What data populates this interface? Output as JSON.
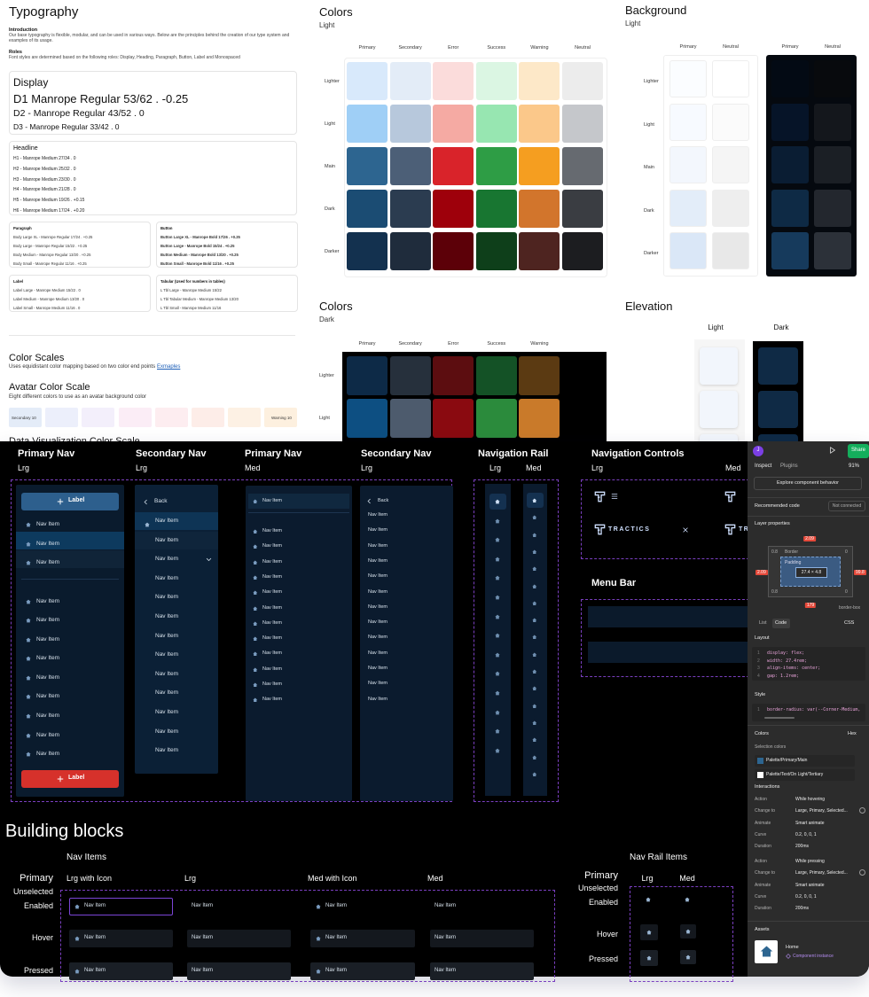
{
  "typography": {
    "title": "Typography",
    "intro_heading": "Introduction",
    "intro": "Our base typography is flexible, modular, and can be used in various ways. Below are the principles behind the creation of our type system and examples of its usage.",
    "roles_heading": "Roles",
    "roles": "Font styles are determined based on the following roles: Display, Heading, Paragraph, Button, Label and Monospaced",
    "display": {
      "title": "Display",
      "items": [
        "D1 Manrope Regular 53/62 . -0.25",
        "D2 - Manrope Regular 43/52 . 0",
        "D3 - Manrope Regular 33/42 . 0"
      ]
    },
    "headline": {
      "title": "Headline",
      "items": [
        "H1 - Manrope Medium 27/34 . 0",
        "H2 - Manrope Medium 25/32 . 0",
        "H3 - Manrope Medium 23/30 . 0",
        "H4 - Manrope Medium 21/28 . 0",
        "H5 - Manrope Medium 19/26 . +0.15",
        "H6 - Manrope Medium 17/24 . +0.20"
      ]
    },
    "paragraph": {
      "title": "Paragraph",
      "items": [
        "Body Large XL - Manrope Regular 17/24 . +0.25",
        "Body Large - Manrope Regular 15/22 . +0.25",
        "Body Medium - Manrope Regular 13/20 . +0.25",
        "Body Small - Manrope Regular 11/16 . +0.25"
      ]
    },
    "button": {
      "title": "Button",
      "items": [
        "Button Large XL - Manrope Bold 17/26 . +0.25",
        "Button Large - Manrope Bold 15/24 . +0.25",
        "Button Medium - Manrope Bold 13/20 . +0.25",
        "Button Small - Manrope Bold 11/16 . +0.25"
      ]
    },
    "label": {
      "title": "Label",
      "items": [
        "Label Large - Manrope Medium 15/22 . 0",
        "Label Medium - Manrope Medium 13/20 . 0",
        "Label Small - Manrope Medium 11/16 . 0"
      ]
    },
    "tabular": {
      "title": "Tabular (Used for numbers in tables)",
      "items": [
        "L Tbl Large - Manrope Medium 15/22",
        "L Tbl Tabular Medium - Manrope Medium 13/20",
        "L Tbl Small - Manrope Medium 11/16"
      ]
    }
  },
  "color_scales": {
    "title": "Color Scales",
    "description": "Uses equidistant color mapping based on two color end points",
    "link": "Exmaples"
  },
  "avatar_color_scale": {
    "title": "Avatar Color Scale",
    "description": "Eight different colors to use as an avatar background color",
    "swatch_labels": [
      "Secondary 10",
      "Warning 10"
    ]
  },
  "data_visualization_title": "Data Visualization Color Scale",
  "colors_light": {
    "title": "Colors",
    "subtitle": "Light",
    "columns": [
      "Primary",
      "Secondary",
      "Error",
      "Success",
      "Warning",
      "Neutral"
    ],
    "rows": [
      "Lighter",
      "Light",
      "Main",
      "Dark",
      "Darker"
    ]
  },
  "background": {
    "title": "Background",
    "subtitle": "Light",
    "columns": [
      "Primary",
      "Neutral",
      "Primary",
      "Neutral"
    ],
    "rows": [
      "Lighter",
      "Light",
      "Main",
      "Dark",
      "Darker"
    ]
  },
  "colors_dark": {
    "title": "Colors",
    "subtitle": "Dark",
    "columns": [
      "Primary",
      "Secondary",
      "Error",
      "Success",
      "Warning"
    ],
    "rows": [
      "Lighter",
      "Light"
    ]
  },
  "elevation": {
    "title": "Elevation",
    "columns": [
      "Light",
      "Dark"
    ]
  },
  "nav_sections": [
    {
      "title": "Primary Nav",
      "sizes": [
        "Lrg"
      ]
    },
    {
      "title": "Secondary Nav",
      "sizes": [
        "Lrg"
      ]
    },
    {
      "title": "Primary Nav",
      "sizes": [
        "Med"
      ]
    },
    {
      "title": "Secondary Nav",
      "sizes": [
        "Lrg"
      ]
    },
    {
      "title": "Navigation Rail",
      "sizes": [
        "Lrg",
        "Med"
      ]
    },
    {
      "title": "Navigation Controls",
      "sizes": [
        "Lrg",
        "Med"
      ]
    }
  ],
  "primary_nav_lrg": {
    "top_button": "Label",
    "items": [
      "Nav Item",
      "Nav Item",
      "Nav Item",
      "Nav Item",
      "Nav Item",
      "Nav Item",
      "Nav Item",
      "Nav Item",
      "Nav Item",
      "Nav Item",
      "Nav Item",
      "Nav Item"
    ],
    "bottom_button": "Label"
  },
  "secondary_nav_lrg": {
    "back": "Back",
    "items": [
      "Nav Item",
      "Nav Item",
      "Nav Item",
      "Nav Item",
      "Nav Item",
      "Nav Item",
      "Nav Item",
      "Nav Item",
      "Nav Item",
      "Nav Item",
      "Nav Item",
      "Nav Item",
      "Nav Item"
    ]
  },
  "primary_nav_med": {
    "items": [
      "Nav Item",
      "Nav Item",
      "Nav Item",
      "Nav Item",
      "Nav Item",
      "Nav Item",
      "Nav Item",
      "Nav Item",
      "Nav Item",
      "Nav Item",
      "Nav Item",
      "Nav Item",
      "Nav Item"
    ]
  },
  "secondary_nav_med": {
    "back": "Back",
    "items": [
      "Nav Item",
      "Nav Item",
      "Nav Item",
      "Nav Item",
      "Nav Item",
      "Nav Item",
      "Nav Item",
      "Nav Item",
      "Nav Item",
      "Nav Item",
      "Nav Item",
      "Nav Item",
      "Nav Item"
    ]
  },
  "navigation_controls": {
    "brand": "TRACTICS"
  },
  "menu_bar": {
    "title": "Menu Bar"
  },
  "building_blocks": {
    "title": "Building blocks",
    "nav_items": {
      "title": "Nav Items",
      "columns": [
        "Lrg with Icon",
        "Lrg",
        "Med with Icon",
        "Med"
      ],
      "group": "Primary",
      "subgroup": "Unselected",
      "states": [
        "Enabled",
        "Hover",
        "Pressed"
      ],
      "rows": [
        [
          "Nav Item",
          "Nav Item",
          "Nav Item",
          "Nav Item"
        ],
        [
          "Nav Item",
          "Nav Item",
          "Nav Item",
          "Nav Item"
        ],
        [
          "Nav Item",
          "Nav Item",
          "Nav Item",
          "Nav Item"
        ]
      ]
    },
    "nav_rail_items": {
      "title": "Nav Rail Items",
      "columns": [
        "Lrg",
        "Med"
      ],
      "group": "Primary",
      "subgroup": "Unselected",
      "states": [
        "Enabled",
        "Hover",
        "Pressed"
      ]
    }
  },
  "inspector": {
    "avatar": "J",
    "share": "Share",
    "tabs": [
      "Inspect",
      "Plugins"
    ],
    "zoom": "91%",
    "explore": "Explore component behavior",
    "recommended_code": "Recommended code",
    "connection": "Not connected",
    "layer_properties": "Layer properties",
    "box_model": {
      "margin_top": "2.09",
      "margin_left": "2.09",
      "margin_right": "99.8",
      "margin_bottom": "179",
      "border": "Border",
      "padding": "Padding",
      "size": "27.4 × 4.8",
      "corners": [
        "0.8",
        "0",
        "0.8",
        "0"
      ],
      "box_sizing": "border-box"
    },
    "code_tabs": [
      "List",
      "Code"
    ],
    "language": "CSS",
    "layout": {
      "title": "Layout",
      "lines": [
        {
          "n": "1",
          "code": "display: flex;"
        },
        {
          "n": "2",
          "code": "width: 27.4rem;"
        },
        {
          "n": "3",
          "code": "align-items: center;"
        },
        {
          "n": "4",
          "code": "gap: 1.2rem;"
        }
      ]
    },
    "style": {
      "title": "Style",
      "lines": [
        {
          "n": "1",
          "code": "border-radius: var(--Corner-Medium,"
        }
      ]
    },
    "colors": {
      "title": "Colors",
      "format": "Hex",
      "selection_title": "Selection colors",
      "selection": [
        "Palette/Primary/Main",
        "Palette/Text/On Light/Tertiary"
      ]
    },
    "interactions": {
      "title": "Interactions",
      "groups": [
        [
          {
            "label": "Action",
            "value": "While hovering"
          },
          {
            "label": "Change to",
            "value": "Large, Primary, Selected..."
          },
          {
            "label": "Animate",
            "value": "Smart animate"
          },
          {
            "label": "Curve",
            "value": "0.2, 0, 0, 1"
          },
          {
            "label": "Duration",
            "value": "200ms"
          }
        ],
        [
          {
            "label": "Action",
            "value": "While pressing"
          },
          {
            "label": "Change to",
            "value": "Large, Primary, Selected..."
          },
          {
            "label": "Animate",
            "value": "Smart animate"
          },
          {
            "label": "Curve",
            "value": "0.2, 0, 0, 1"
          },
          {
            "label": "Duration",
            "value": "200ms"
          }
        ]
      ]
    },
    "assets": {
      "title": "Assets",
      "name": "Home",
      "kind": "Component instance"
    }
  }
}
